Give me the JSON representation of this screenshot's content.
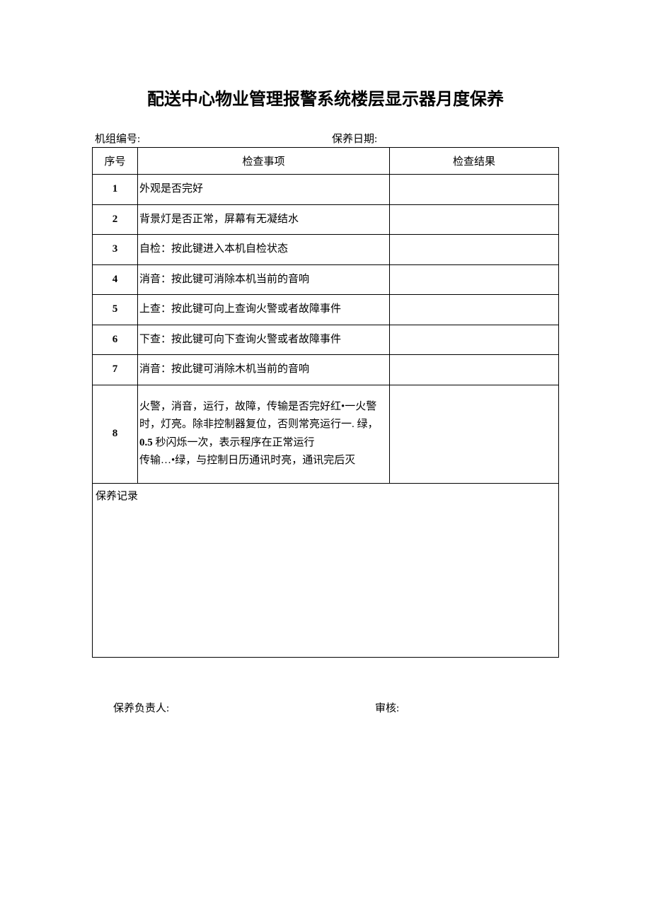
{
  "title": "配送中心物业管理报警系统楼层显示器月度保养",
  "meta": {
    "unit_label": "机组编号:",
    "date_label": "保养日期:"
  },
  "headers": {
    "seq": "序号",
    "item": "检查事项",
    "result": "检查结果"
  },
  "rows": [
    {
      "seq": "1",
      "item": "外观是否完好",
      "result": ""
    },
    {
      "seq": "2",
      "item": "背景灯是否正常，屏幕有无凝结水",
      "result": ""
    },
    {
      "seq": "3",
      "item": "自检：按此键进入本机自检状态",
      "result": ""
    },
    {
      "seq": "4",
      "item": "消音：按此键可消除本机当前的音响",
      "result": ""
    },
    {
      "seq": "5",
      "item": "上查：按此键可向上查询火警或者故障事件",
      "result": ""
    },
    {
      "seq": "6",
      "item": "下查：按此键可向下查询火警或者故障事件",
      "result": ""
    },
    {
      "seq": "7",
      "item": "消音：按此键可消除木机当前的音响",
      "result": ""
    }
  ],
  "row8": {
    "seq": "8",
    "line1": "火警，消音，运行，故障，传输是否完好红•一火警时，灯亮。除非控制器复位，否则常亮运行一. 绿，",
    "bold_part": "0.5",
    "line2_rest": " 秒闪烁一次，表示程序在正常运行",
    "line3": "传输…•绿，与控制日历通讯时亮，通讯完后灭",
    "result": ""
  },
  "record_label": "保养记录",
  "footer": {
    "responsible": "保养负责人:",
    "auditor": "审核:"
  }
}
